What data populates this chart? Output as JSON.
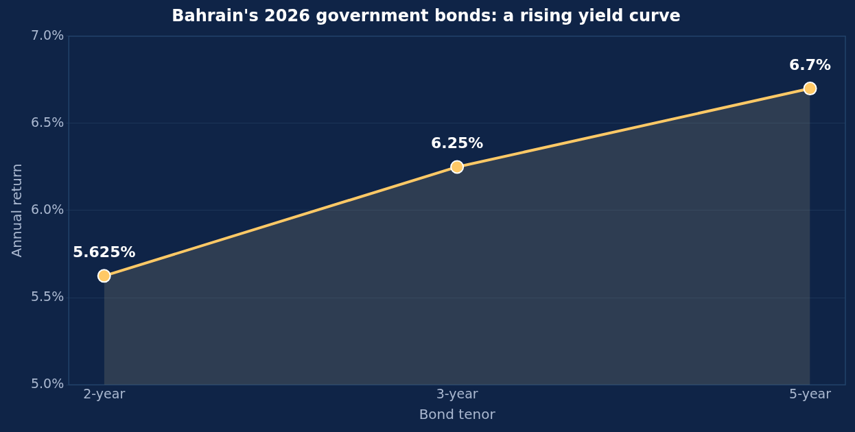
{
  "chart_data": {
    "type": "area",
    "title": "Bahrain's 2026 government bonds: a rising yield curve",
    "xlabel": "Bond tenor",
    "ylabel": "Annual return",
    "categories": [
      "2-year",
      "3-year",
      "5-year"
    ],
    "series": [
      {
        "color": "#ffc966",
        "values": [
          5.625,
          6.25,
          6.7
        ],
        "value_labels": [
          "5.625%",
          "6.25%",
          "6.7%"
        ]
      }
    ],
    "ylim": [
      5.0,
      7.0
    ],
    "yticks": [
      {
        "value": 5.0,
        "label": "5.0%"
      },
      {
        "value": 5.5,
        "label": "5.5%"
      },
      {
        "value": 6.0,
        "label": "6.0%"
      },
      {
        "value": 6.5,
        "label": "6.5%"
      },
      {
        "value": 7.0,
        "label": "7.0%"
      }
    ],
    "grid": "y",
    "marker": "circle",
    "line_style": "solid",
    "legend": false
  }
}
